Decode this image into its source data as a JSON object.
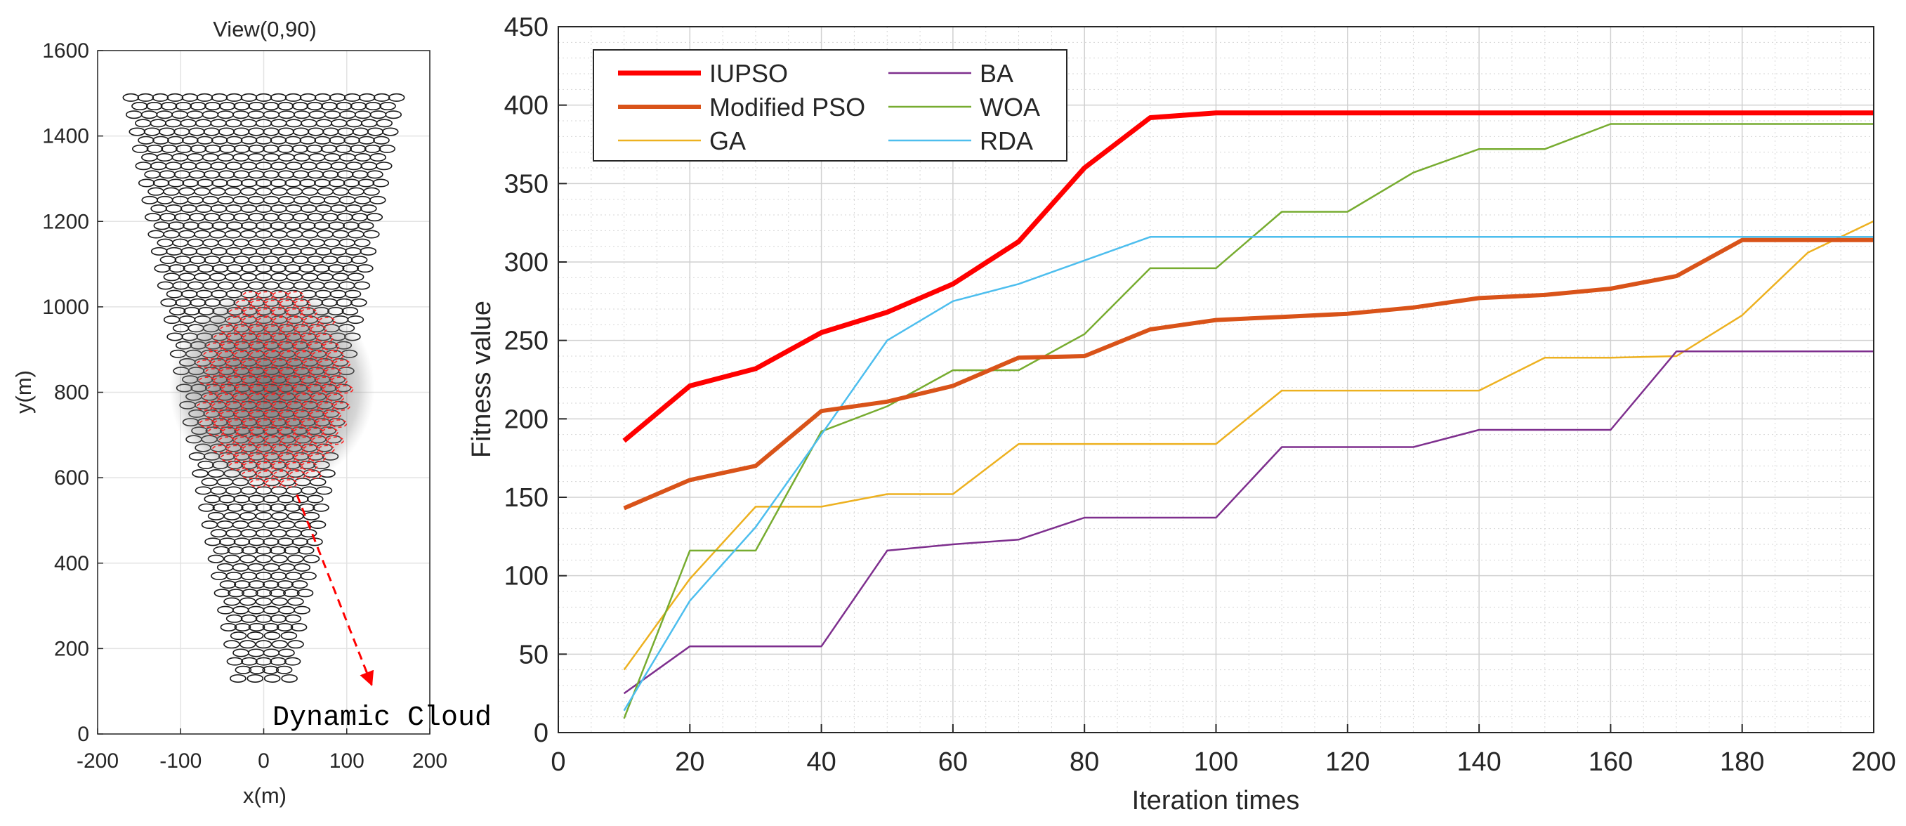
{
  "chart_data": [
    {
      "type": "scatter",
      "title": "View(0,90)",
      "xlabel": "x(m)",
      "ylabel": "y(m)",
      "xlim": [
        -200,
        200
      ],
      "ylim": [
        0,
        1600
      ],
      "xticks": [
        "-200",
        "-100",
        "0",
        "100",
        "200"
      ],
      "yticks": [
        "0",
        "200",
        "400",
        "600",
        "800",
        "1000",
        "1200",
        "1400",
        "1600"
      ],
      "grid": true,
      "formation": {
        "shape": "inverted-cone",
        "top_y": 1490,
        "bottom_y": 120,
        "top_half_width": 160,
        "bottom_half_width": 30,
        "row_spacing": 20,
        "col_spacing": 18
      },
      "cloud": {
        "center_x": 10,
        "center_y": 810,
        "radius": 240
      },
      "annotation": {
        "text": "Dynamic Cloud",
        "arrow_from": [
          40,
          560
        ],
        "arrow_to": [
          130,
          115
        ]
      }
    },
    {
      "type": "line",
      "xlabel": "Iteration times",
      "ylabel": "Fitness value",
      "xlim": [
        0,
        200
      ],
      "ylim": [
        0,
        450
      ],
      "xticks": [
        "0",
        "20",
        "40",
        "60",
        "80",
        "100",
        "120",
        "140",
        "160",
        "180",
        "200"
      ],
      "yticks": [
        "0",
        "50",
        "100",
        "150",
        "200",
        "250",
        "300",
        "350",
        "400",
        "450"
      ],
      "grid": true,
      "legend_position": "top-left",
      "x": [
        10,
        20,
        30,
        40,
        50,
        60,
        70,
        80,
        90,
        100,
        110,
        120,
        130,
        140,
        150,
        160,
        170,
        180,
        190,
        200
      ],
      "series": [
        {
          "name": "IUPSO",
          "color": "#ff0000",
          "width": 7,
          "values": [
            186,
            221,
            232,
            255,
            268,
            286,
            313,
            360,
            392,
            395,
            395,
            395,
            395,
            395,
            395,
            395,
            395,
            395,
            395,
            395
          ]
        },
        {
          "name": "Modified PSO",
          "color": "#d95319",
          "width": 6,
          "values": [
            143,
            161,
            170,
            205,
            211,
            221,
            239,
            240,
            257,
            263,
            265,
            267,
            271,
            277,
            279,
            283,
            291,
            314,
            314,
            314
          ]
        },
        {
          "name": "GA",
          "color": "#edb120",
          "width": 2.5,
          "values": [
            40,
            98,
            144,
            144,
            152,
            152,
            184,
            184,
            184,
            184,
            218,
            218,
            218,
            218,
            239,
            239,
            240,
            266,
            306,
            326
          ]
        },
        {
          "name": "BA",
          "color": "#7e2f8e",
          "width": 2.5,
          "values": [
            25,
            55,
            55,
            55,
            116,
            120,
            123,
            137,
            137,
            137,
            182,
            182,
            182,
            193,
            193,
            193,
            243,
            243,
            243,
            243
          ]
        },
        {
          "name": "WOA",
          "color": "#77ac30",
          "width": 2.5,
          "values": [
            9,
            116,
            116,
            192,
            208,
            231,
            231,
            254,
            296,
            296,
            332,
            332,
            357,
            372,
            372,
            388,
            388,
            388,
            388,
            388
          ]
        },
        {
          "name": "RDA",
          "color": "#4dbeee",
          "width": 2.5,
          "values": [
            14,
            84,
            131,
            190,
            250,
            275,
            286,
            301,
            316,
            316,
            316,
            316,
            316,
            316,
            316,
            316,
            316,
            316,
            316,
            316
          ]
        }
      ]
    }
  ]
}
